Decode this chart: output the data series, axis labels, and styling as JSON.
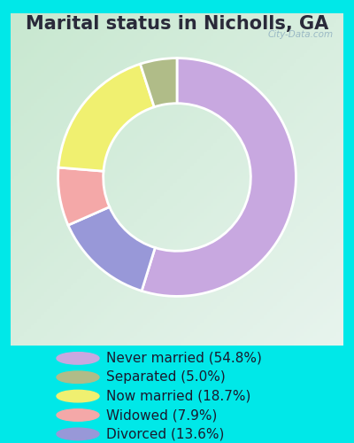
{
  "title": "Marital status in Nicholls, GA",
  "labels": [
    "Never married (54.8%)",
    "Separated (5.0%)",
    "Now married (18.7%)",
    "Widowed (7.9%)",
    "Divorced (13.6%)"
  ],
  "legend_colors": [
    "#c8a8e0",
    "#b0bc88",
    "#f0f070",
    "#f4a8a8",
    "#9898d8"
  ],
  "pie_sizes": [
    54.8,
    5.0,
    18.7,
    7.9,
    13.6
  ],
  "pie_colors": [
    "#c8a8e0",
    "#b0bc88",
    "#f0f070",
    "#f4a8a8",
    "#9898d8"
  ],
  "pie_order_sizes": [
    54.8,
    13.6,
    7.9,
    18.7,
    5.0
  ],
  "pie_order_colors": [
    "#c8a8e0",
    "#9898d8",
    "#f4a8a8",
    "#f0f070",
    "#b0bc88"
  ],
  "bg_color": "#00e8e8",
  "chart_bg_tl": "#c8e8d0",
  "chart_bg_br": "#e8f4e8",
  "watermark": "City-Data.com",
  "title_fontsize": 15,
  "legend_fontsize": 11,
  "donut_width": 0.38,
  "startangle": 90
}
